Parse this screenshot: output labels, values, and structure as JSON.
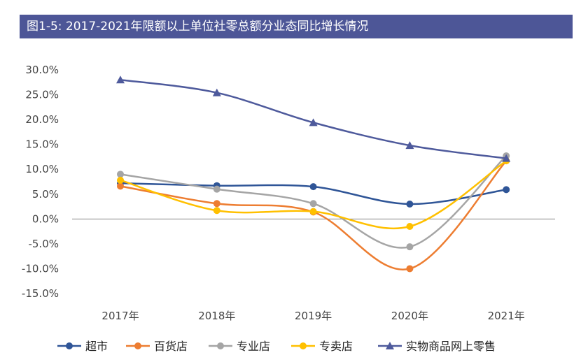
{
  "chart_data": {
    "type": "line",
    "title": "图1-5: 2017-2021年限额以上单位社零总额分业态同比增长情况",
    "categories": [
      "2017年",
      "2018年",
      "2019年",
      "2020年",
      "2021年"
    ],
    "ylim": [
      -15,
      30
    ],
    "yticks": [
      "30.0%",
      "25.0%",
      "20.0%",
      "15.0%",
      "10.0%",
      "5.0%",
      "0.0%",
      "-5.0%",
      "-10.0%",
      "-15.0%"
    ],
    "ytick_values": [
      30,
      25,
      20,
      15,
      10,
      5,
      0,
      -5,
      -10,
      -15
    ],
    "legend_position": "bottom",
    "series": [
      {
        "name": "超市",
        "color": "#2f5597",
        "marker": "circle",
        "values": [
          7.2,
          6.7,
          6.5,
          3.0,
          5.9
        ]
      },
      {
        "name": "百货店",
        "color": "#ed7d31",
        "marker": "circle",
        "values": [
          6.6,
          3.1,
          1.4,
          -10.0,
          11.7
        ]
      },
      {
        "name": "专业店",
        "color": "#a5a5a5",
        "marker": "circle",
        "values": [
          9.0,
          6.0,
          3.1,
          -5.6,
          12.7
        ]
      },
      {
        "name": "专卖店",
        "color": "#ffc000",
        "marker": "circle",
        "values": [
          7.8,
          1.7,
          1.5,
          -1.5,
          11.7
        ]
      },
      {
        "name": "实物商品网上零售",
        "color": "#4e5a9c",
        "marker": "triangle",
        "values": [
          28.0,
          25.4,
          19.4,
          14.8,
          12.2
        ]
      }
    ]
  }
}
